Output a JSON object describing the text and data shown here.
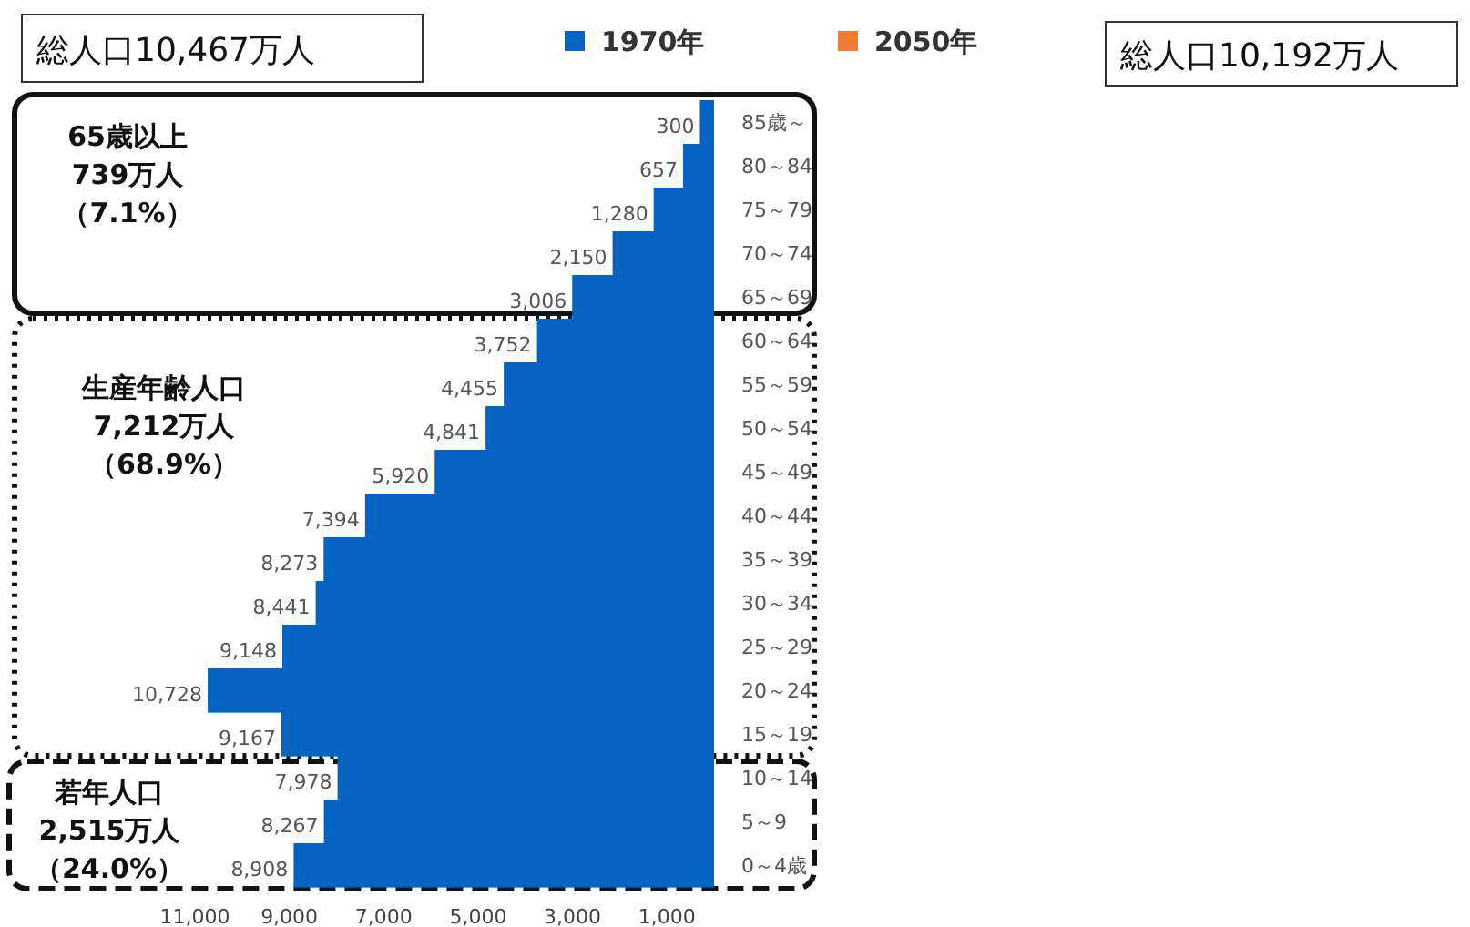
{
  "chart_data": {
    "type": "bar",
    "orientation": "horizontal",
    "categories": [
      "85歳～",
      "80～84",
      "75～79",
      "70～74",
      "65～69",
      "60～64",
      "55～59",
      "50～54",
      "45～49",
      "40～44",
      "35～39",
      "30～34",
      "25～29",
      "20～24",
      "15～19",
      "10～14",
      "5～9",
      "0～4歳"
    ],
    "series": [
      {
        "name": "1970年",
        "color": "#0563c1",
        "values": [
          300,
          657,
          1280,
          2150,
          3006,
          3752,
          4455,
          4841,
          5920,
          7394,
          8273,
          8441,
          9148,
          10728,
          9167,
          7978,
          8267,
          8908
        ],
        "value_labels": [
          "300",
          "657",
          "1,280",
          "2,150",
          "3,006",
          "3,752",
          "4,455",
          "4,841",
          "5,920",
          "7,394",
          "8,273",
          "8,441",
          "9,148",
          "10,728",
          "9,167",
          "7,978",
          "8,267",
          "8,908"
        ]
      },
      {
        "name": "2050年",
        "color": "#ed7d31",
        "values": [
          null,
          null,
          null,
          null,
          null,
          null,
          null,
          null,
          null,
          null,
          null,
          null,
          null,
          null,
          null,
          null,
          null,
          null
        ]
      }
    ],
    "xlim": [
      11000,
      0
    ],
    "xticks": [
      {
        "value": 11000,
        "label": "11,000"
      },
      {
        "value": 9000,
        "label": "9,000"
      },
      {
        "value": 7000,
        "label": "7,000"
      },
      {
        "value": 5000,
        "label": "5,000"
      },
      {
        "value": 3000,
        "label": "3,000"
      },
      {
        "value": 1000,
        "label": "1,000"
      }
    ],
    "legend": "top",
    "grid": false,
    "annotations": [
      "総人口10,467万人",
      "総人口10,192万人",
      "65歳以上",
      "739万人",
      "（7.1%）",
      "生産年齢人口",
      "7,212万人",
      "（68.9%）",
      "若年人口",
      "2,515万人",
      "（24.0%）"
    ]
  }
}
